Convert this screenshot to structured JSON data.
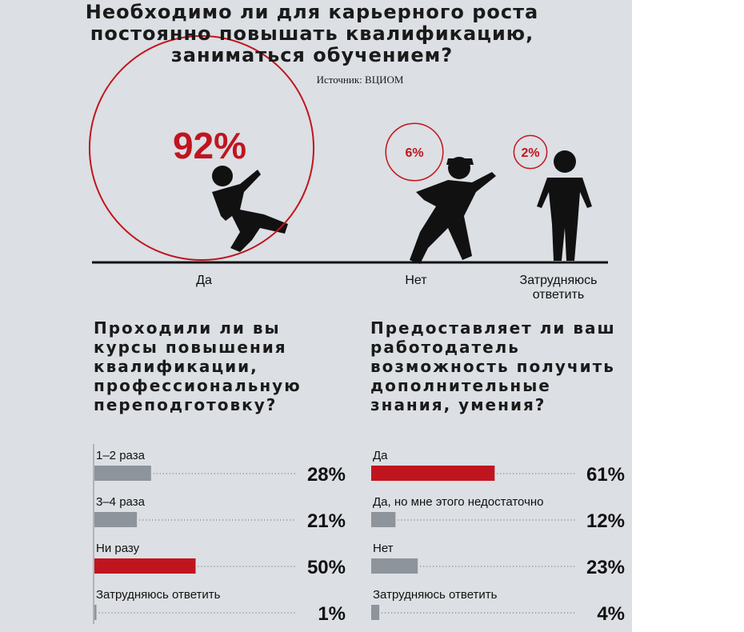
{
  "chart_data": [
    {
      "type": "bubble",
      "title": "Необходимо ли для карьерного роста постоянно повышать квалификацию, заниматься обучением?",
      "source": "Источник: ВЦИОМ",
      "categories": [
        "Да",
        "Нет",
        "Затрудняюсь ответить"
      ],
      "values": [
        92,
        6,
        2
      ],
      "value_labels": [
        "92%",
        "6%",
        "2%"
      ],
      "color": "#c0151f"
    },
    {
      "type": "hbar",
      "title": "Проходили ли вы курсы повышения квалификации, профессиональную переподготовку?",
      "categories": [
        "1–2 раза",
        "3–4 раза",
        "Ни разу",
        "Затрудняюсь ответить"
      ],
      "values": [
        28,
        21,
        50,
        1
      ],
      "value_labels": [
        "28%",
        "21%",
        "50%",
        "1%"
      ],
      "colors": [
        "#8e949b",
        "#8e949b",
        "#c0151f",
        "#8e949b"
      ]
    },
    {
      "type": "hbar",
      "title": "Предоставляет ли ваш работодатель возможность получить дополнительные знания, умения?",
      "categories": [
        "Да",
        "Да, но мне этого недостаточно",
        "Нет",
        "Затрудняюсь ответить"
      ],
      "values": [
        61,
        12,
        23,
        4
      ],
      "value_labels": [
        "61%",
        "12%",
        "23%",
        "4%"
      ],
      "colors": [
        "#c0151f",
        "#8e949b",
        "#8e949b",
        "#8e949b"
      ]
    }
  ]
}
